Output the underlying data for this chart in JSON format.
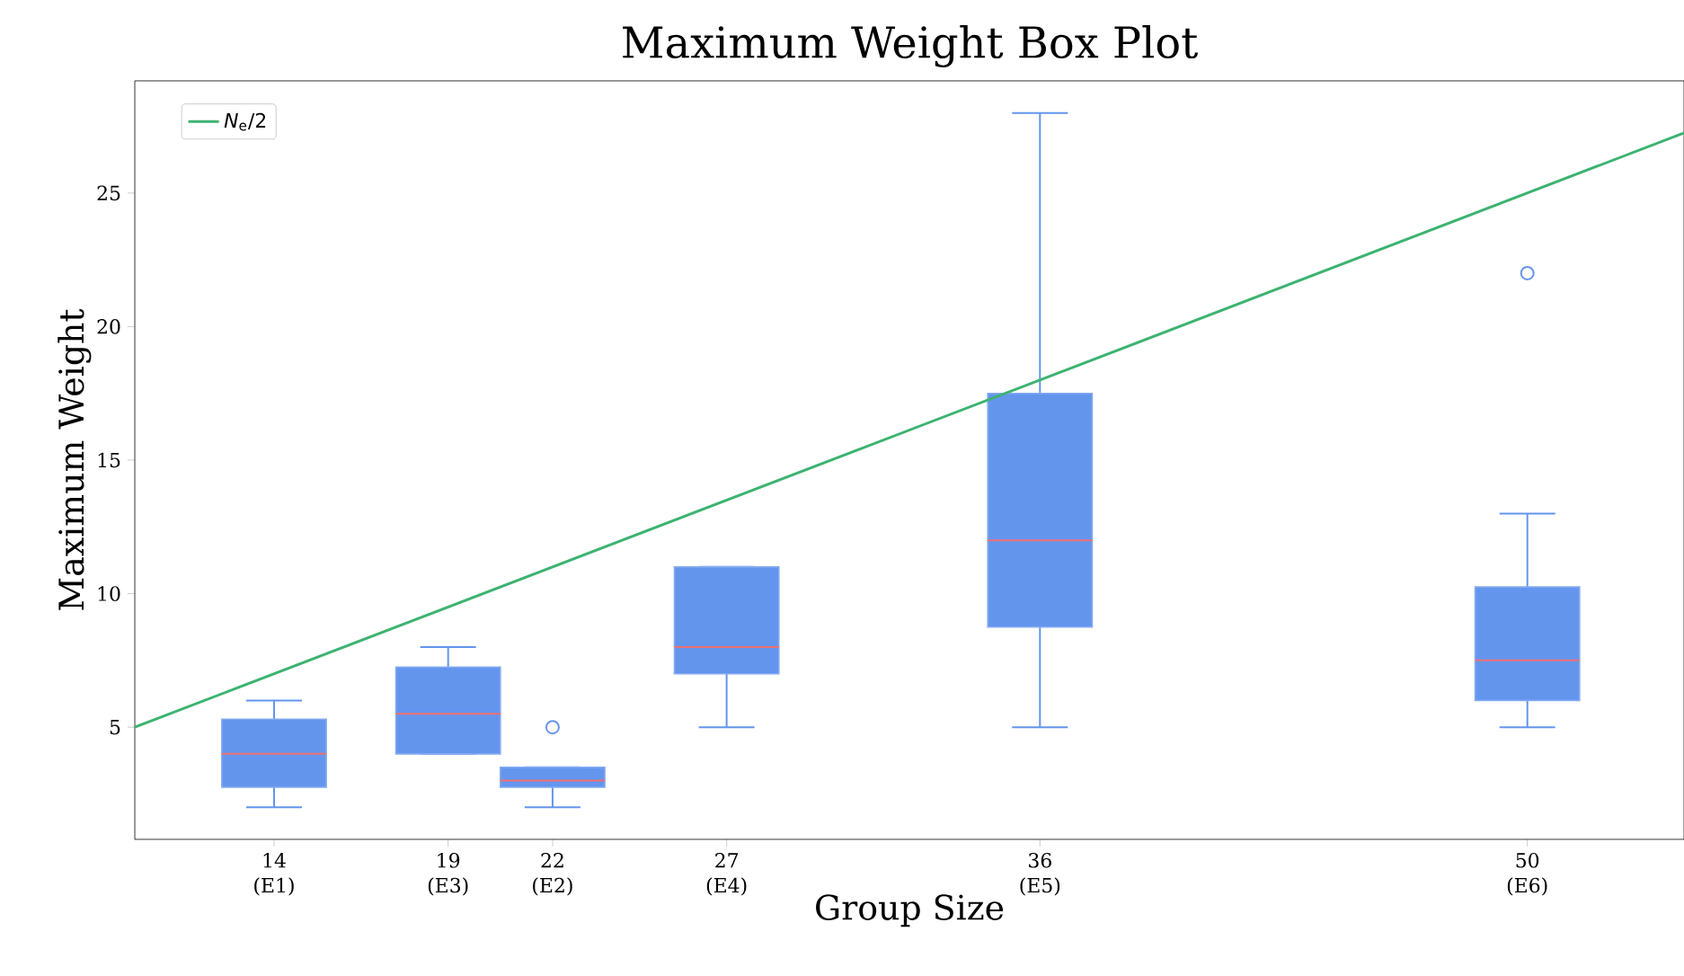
{
  "chart_data": {
    "type": "box",
    "title": "Maximum Weight Box Plot",
    "xlabel": "Group Size",
    "ylabel": "Maximum Weight",
    "xlim": [
      10,
      54.5
    ],
    "ylim": [
      0.8,
      29.2
    ],
    "xticks": [
      14,
      19,
      22,
      27,
      36,
      50
    ],
    "annotations": [
      "(E1)",
      "(E3)",
      "(E2)",
      "(E4)",
      "(E5)",
      "(E6)"
    ],
    "yticks": [
      5,
      10,
      15,
      20,
      25
    ],
    "legend": "top left",
    "series": [
      {
        "type": "box",
        "color": "#6495ed",
        "x": [
          14,
          19,
          22,
          27,
          36,
          50
        ],
        "boxes": [
          {
            "low": 2,
            "q1": 2.75,
            "median": 4,
            "q3": 5.3,
            "high": 6
          },
          {
            "low": 4,
            "q1": 4,
            "median": 5.5,
            "q3": 7.25,
            "high": 8
          },
          {
            "low": 2,
            "q1": 2.75,
            "median": 3,
            "q3": 3.5,
            "high": 3.5,
            "outliers": [
              5
            ]
          },
          {
            "low": 5,
            "q1": 7,
            "median": 8,
            "q3": 11,
            "high": 11
          },
          {
            "low": 5,
            "q1": 8.75,
            "median": 12,
            "q3": 17.5,
            "high": 28
          },
          {
            "low": 5,
            "q1": 6,
            "median": 7.5,
            "q3": 10.25,
            "high": 13,
            "outliers": [
              22
            ]
          }
        ]
      },
      {
        "type": "line",
        "name": "*N*$_{e}$/2",
        "color": "#3cb371",
        "x": [
          10,
          54.5
        ],
        "values": [
          5,
          27.25
        ]
      }
    ]
  }
}
